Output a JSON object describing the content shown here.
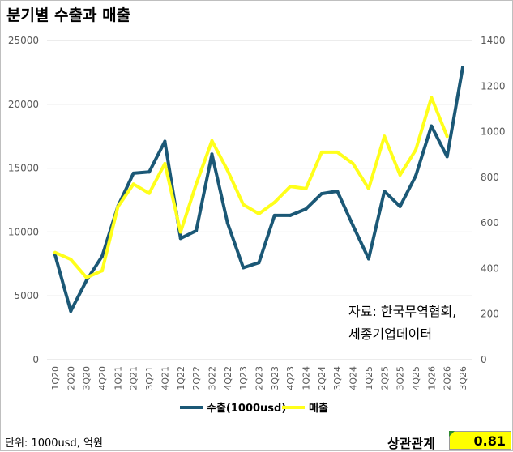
{
  "title": "분기별 수출과 매출",
  "footer": {
    "unit": "단위: 1000usd, 억원",
    "correlation_label": "상관관계",
    "correlation_value": "0.81"
  },
  "annotation": [
    "자료: 한국무역협회,",
    "세종기업데이터"
  ],
  "colors": {
    "export": "#1b5876",
    "sales": "#ffff1a",
    "highlight": "#ffff00"
  },
  "chart_data": {
    "type": "line",
    "title": "분기별 수출과 매출",
    "categories": [
      "1Q20",
      "2Q20",
      "3Q20",
      "4Q20",
      "1Q21",
      "2Q21",
      "3Q21",
      "4Q21",
      "1Q22",
      "2Q22",
      "3Q22",
      "4Q22",
      "1Q23",
      "2Q23",
      "3Q23",
      "4Q23",
      "1Q24",
      "2Q24",
      "3Q24",
      "4Q24",
      "1Q25",
      "2Q25",
      "3Q25",
      "4Q25",
      "1Q26",
      "2Q26",
      "3Q26"
    ],
    "y_left": {
      "ylim": [
        0,
        25000
      ],
      "ticks": [
        0,
        5000,
        10000,
        15000,
        20000,
        25000
      ]
    },
    "y_right": {
      "ylim": [
        0,
        1400
      ],
      "ticks": [
        0,
        200,
        400,
        600,
        800,
        1000,
        1200,
        1400
      ]
    },
    "legend_position": "bottom-center",
    "series": [
      {
        "name": "수출(1000usd)",
        "axis": "left",
        "values": [
          8200,
          3800,
          6200,
          8100,
          12000,
          14600,
          14700,
          17100,
          9500,
          10100,
          16100,
          10700,
          7200,
          7600,
          11300,
          11300,
          11800,
          13000,
          13200,
          10500,
          7900,
          13200,
          12000,
          14400,
          18300,
          15900,
          22900
        ]
      },
      {
        "name": "매출",
        "axis": "right",
        "values": [
          470,
          440,
          360,
          390,
          670,
          770,
          730,
          860,
          560,
          770,
          960,
          830,
          680,
          640,
          690,
          760,
          750,
          910,
          910,
          860,
          750,
          980,
          810,
          920,
          1150,
          980,
          null
        ]
      }
    ]
  }
}
